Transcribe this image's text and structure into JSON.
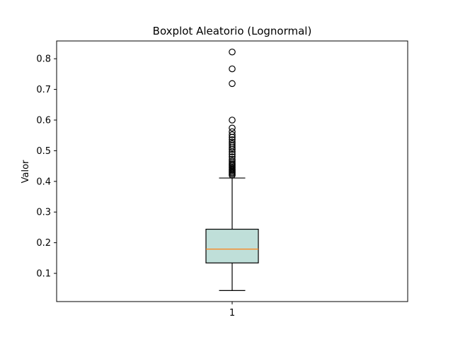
{
  "chart_data": {
    "type": "box",
    "title": "Boxplot Aleatorio (Lognormal)",
    "xlabel": "",
    "ylabel": "Valor",
    "ylim": [
      0.008,
      0.858
    ],
    "y_ticks": [
      0.1,
      0.2,
      0.3,
      0.4,
      0.5,
      0.6,
      0.7,
      0.8
    ],
    "y_tick_labels": [
      "0.1",
      "0.2",
      "0.3",
      "0.4",
      "0.5",
      "0.6",
      "0.7",
      "0.8"
    ],
    "categories": [
      "1"
    ],
    "grid": false,
    "box": {
      "category": "1",
      "whisker_low": 0.044,
      "q1": 0.134,
      "median": 0.179,
      "q3": 0.244,
      "whisker_high": 0.411,
      "fliers": [
        0.42,
        0.424,
        0.428,
        0.432,
        0.436,
        0.44,
        0.444,
        0.448,
        0.452,
        0.456,
        0.46,
        0.466,
        0.472,
        0.48,
        0.488,
        0.496,
        0.504,
        0.51,
        0.516,
        0.522,
        0.528,
        0.536,
        0.544,
        0.552,
        0.562,
        0.574,
        0.6,
        0.719,
        0.767,
        0.822
      ]
    },
    "colors": {
      "box_fill": "#bfdfd9",
      "median_line": "#ff7f0e",
      "edge": "#000000"
    }
  }
}
